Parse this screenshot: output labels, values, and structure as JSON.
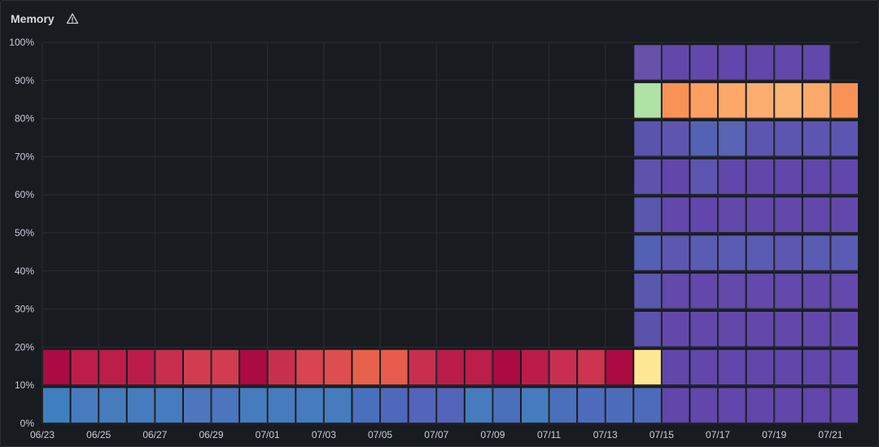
{
  "panel": {
    "title": "Memory",
    "warning_icon": "warning-triangle-icon"
  },
  "chart_data": {
    "type": "heatmap",
    "title": "Memory",
    "xlabel": "",
    "ylabel": "",
    "ylim": [
      0,
      100
    ],
    "y_ticks": [
      "0%",
      "10%",
      "20%",
      "30%",
      "40%",
      "50%",
      "60%",
      "70%",
      "80%",
      "90%",
      "100%"
    ],
    "x_ticks": [
      "06/23",
      "06/25",
      "06/27",
      "06/29",
      "07/01",
      "07/03",
      "07/05",
      "07/07",
      "07/09",
      "07/11",
      "07/13",
      "07/15",
      "07/17",
      "07/19",
      "07/21"
    ],
    "x_tick_days": [
      0,
      2,
      4,
      6,
      8,
      10,
      12,
      14,
      16,
      18,
      20,
      22,
      24,
      26,
      28
    ],
    "bucket_size_percent": 10,
    "days": [
      "06/23",
      "06/24",
      "06/25",
      "06/26",
      "06/27",
      "06/28",
      "06/29",
      "06/30",
      "07/01",
      "07/02",
      "07/03",
      "07/04",
      "07/05",
      "07/06",
      "07/07",
      "07/08",
      "07/09",
      "07/10",
      "07/11",
      "07/12",
      "07/13",
      "07/14",
      "07/15",
      "07/16",
      "07/17",
      "07/18",
      "07/19",
      "07/20",
      "07/21"
    ],
    "grid": true,
    "legend": "none",
    "columns": [
      [
        "#3f7fbe",
        "#ab0a43"
      ],
      [
        "#467cbd",
        "#bd1d49"
      ],
      [
        "#467cbd",
        "#bd1d49"
      ],
      [
        "#467cbd",
        "#bb1c4a"
      ],
      [
        "#467cbd",
        "#c92e50"
      ],
      [
        "#4d77bc",
        "#d23c51"
      ],
      [
        "#4c75bd",
        "#d23c51"
      ],
      [
        "#467cbd",
        "#ab0a43"
      ],
      [
        "#467cbd",
        "#c7304f"
      ],
      [
        "#467cbd",
        "#d84451"
      ],
      [
        "#467cbd",
        "#df4e4f"
      ],
      [
        "#4a6fbc",
        "#e8614d"
      ],
      [
        "#4f68bb",
        "#e75c4c"
      ],
      [
        "#5365bb",
        "#c92e50"
      ],
      [
        "#5463ba",
        "#bb1c4a"
      ],
      [
        "#467cbd",
        "#bd1d49"
      ],
      [
        "#4a70bc",
        "#ab0a43"
      ],
      [
        "#467cbd",
        "#bb1c4a"
      ],
      [
        "#4a70bc",
        "#c92e50"
      ],
      [
        "#4d6dbc",
        "#cd3450"
      ],
      [
        "#4d6dbc",
        "#ab0a43"
      ],
      [
        "#4e6bbb",
        "#fee893",
        "#5a52ab",
        "#5a58ad",
        "#5460b4",
        "#5a57ad",
        "#5d52ac",
        "#5a54ad",
        "#b0e1a5",
        "#6851a9"
      ],
      [
        "#6146ab",
        "#6146ab",
        "#6248aa",
        "#6249ab",
        "#5e57b1",
        "#6247ac",
        "#6146ab",
        "#5e55b1",
        "#f99257",
        "#6348ab"
      ],
      [
        "#6146ab",
        "#6146ab",
        "#6248aa",
        "#6248aa",
        "#5a5bb3",
        "#6146ab",
        "#5e55b1",
        "#5362b4",
        "#fb9f62",
        "#6348ab"
      ],
      [
        "#6146ab",
        "#6146ab",
        "#6248aa",
        "#6249ab",
        "#5a5bb3",
        "#6248aa",
        "#6146ab",
        "#5864b4",
        "#fca869",
        "#6146ab"
      ],
      [
        "#6146ab",
        "#6146ab",
        "#6248aa",
        "#6249ab",
        "#5a5bb3",
        "#6248aa",
        "#6146ab",
        "#5c56b1",
        "#fcad70",
        "#6146ab"
      ],
      [
        "#6146ab",
        "#6146ab",
        "#6248aa",
        "#6249ab",
        "#5e57b1",
        "#6248aa",
        "#6146ab",
        "#5c56b1",
        "#fcb575",
        "#6348ab"
      ],
      [
        "#6146ab",
        "#6146ab",
        "#6248aa",
        "#6248aa",
        "#5a5bb3",
        "#6248aa",
        "#6146ab",
        "#5c56b1",
        "#fca96b",
        "#6348ab"
      ],
      [
        "#6146ab",
        "#6146ab",
        "#6248aa",
        "#6249ab",
        "#5a5bb3",
        "#6248aa",
        "#6146ab",
        "#5c56b1",
        "#f99257"
      ]
    ]
  }
}
